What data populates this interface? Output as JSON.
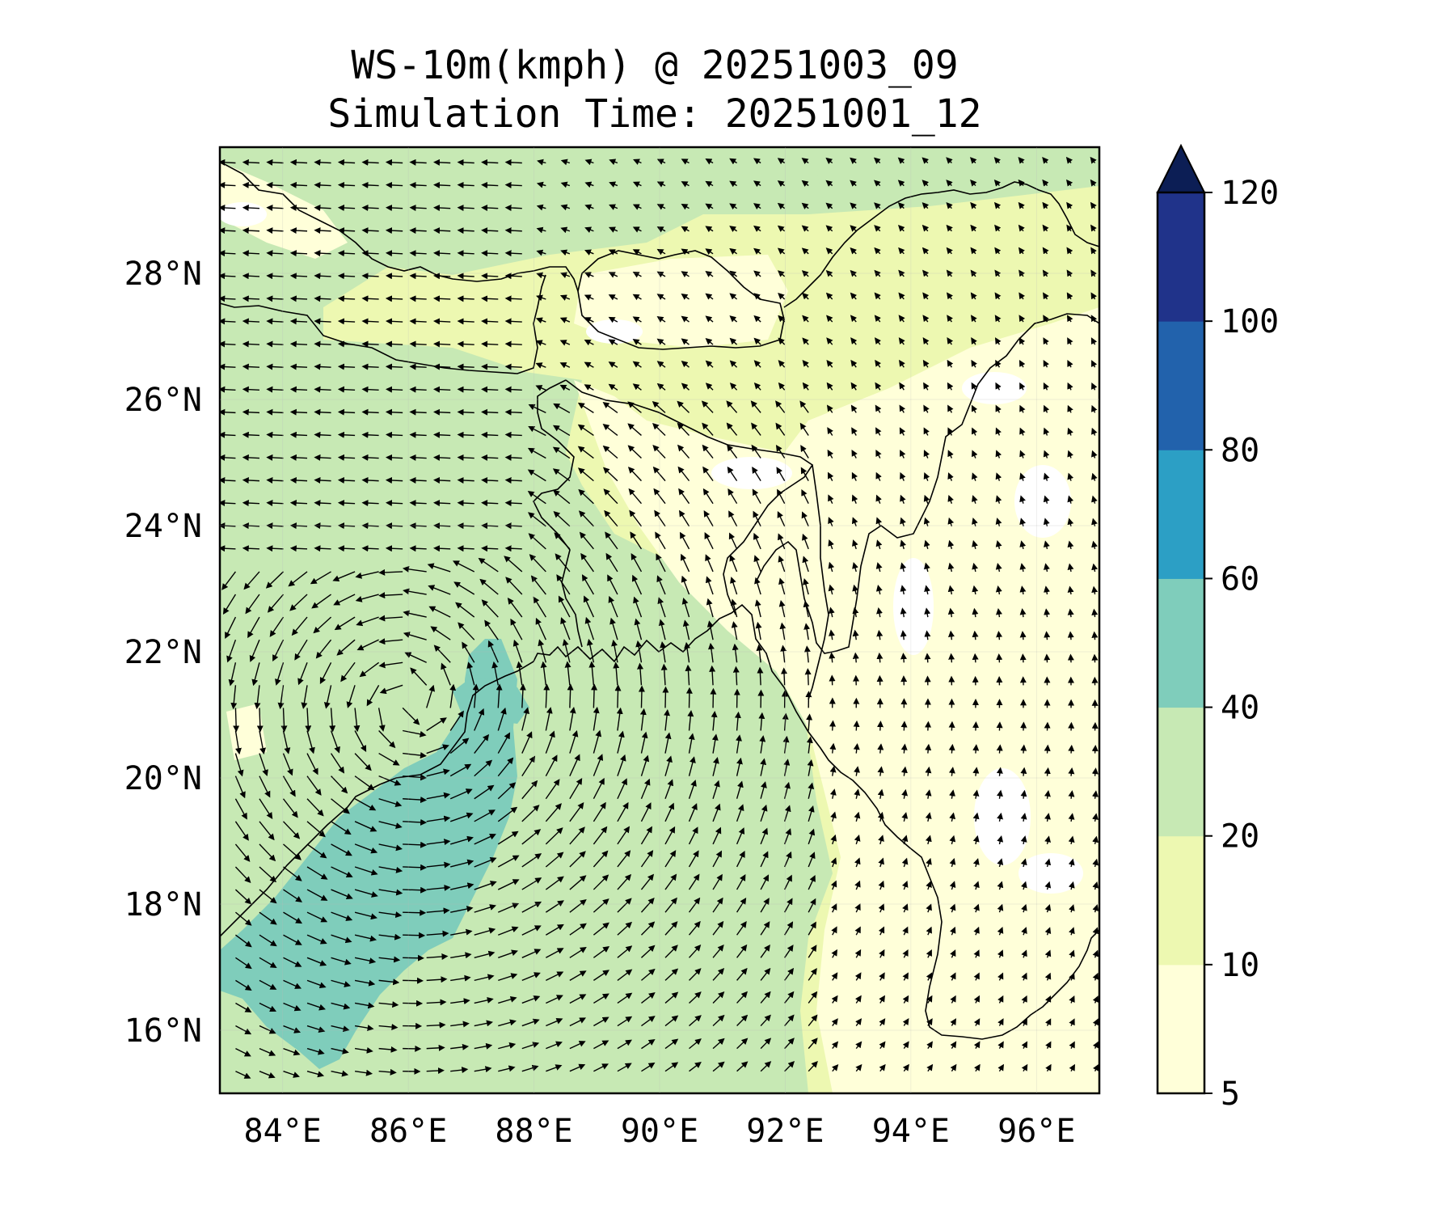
{
  "title": "WS-10m(kmph) @ 20251003_09",
  "subtitle": "Simulation Time: 20251001_12",
  "map": {
    "lon_range": [
      83.0,
      97.0
    ],
    "lat_range": [
      15.0,
      30.0
    ],
    "lon_ticks": [
      84,
      86,
      88,
      90,
      92,
      94,
      96
    ],
    "lon_tick_labels": [
      "84°E",
      "86°E",
      "88°E",
      "90°E",
      "92°E",
      "94°E",
      "96°E"
    ],
    "lat_ticks": [
      16,
      18,
      20,
      22,
      24,
      26,
      28
    ],
    "lat_tick_labels": [
      "16°N",
      "18°N",
      "20°N",
      "22°N",
      "24°N",
      "26°N",
      "28°N"
    ],
    "gridlines": true,
    "colors": {
      "land_light": "#ffffff",
      "band_5_10": "#ffffd9",
      "band_10_20": "#edf8b1",
      "band_20_40": "#c7e9b4",
      "band_40_60": "#7fcdbb",
      "vector": "#000000",
      "coastline": "#000000"
    }
  },
  "colorbar": {
    "levels": [
      5,
      10,
      20,
      40,
      60,
      80,
      100,
      120
    ],
    "labels": [
      "5",
      "10",
      "20",
      "40",
      "60",
      "80",
      "100",
      "120"
    ],
    "colors": [
      "#ffffd9",
      "#edf8b1",
      "#c7e9b4",
      "#7fcdbb",
      "#2c9fc5",
      "#2262ac",
      "#20338a"
    ],
    "extend_color": "#0c1e55",
    "extend": "max"
  }
}
